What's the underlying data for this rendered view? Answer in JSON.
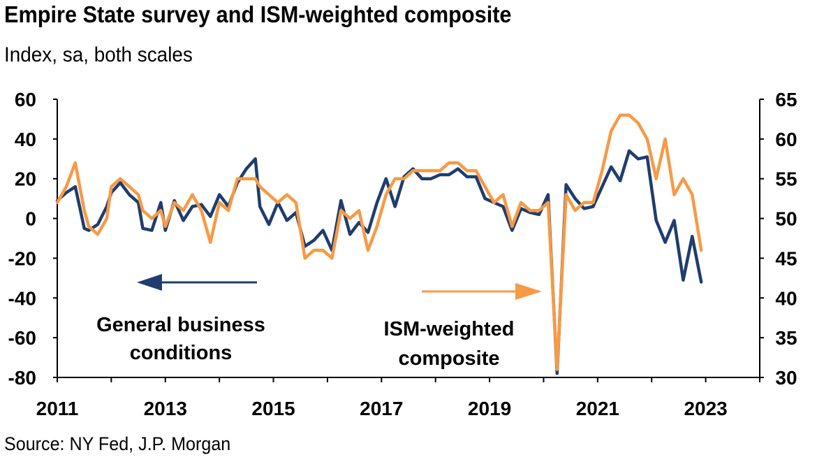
{
  "title": "Empire State survey and ISM-weighted composite",
  "subtitle": "Index, sa, both scales",
  "source": "Source: NY Fed, J.P. Morgan",
  "colors": {
    "navy": "#1f3d6e",
    "orange": "#f79a45"
  },
  "chart_data": {
    "type": "line",
    "x_range": [
      "2011-01",
      "2024-01"
    ],
    "x_ticks": [
      "2011",
      "2013",
      "2015",
      "2017",
      "2019",
      "2021",
      "2023"
    ],
    "y_left": {
      "ylim": [
        -80,
        60
      ],
      "ticks": [
        "60",
        "40",
        "20",
        "0",
        "-20",
        "-40",
        "-60",
        "-80"
      ]
    },
    "y_right": {
      "ylim": [
        30,
        65
      ],
      "ticks": [
        "65",
        "60",
        "55",
        "50",
        "45",
        "40",
        "35",
        "30"
      ]
    },
    "grid": false,
    "annotations": [
      {
        "text": [
          "General business",
          "conditions"
        ],
        "arrow": "left",
        "axis": "left"
      },
      {
        "text": [
          "ISM-weighted",
          "composite"
        ],
        "arrow": "right",
        "axis": "right"
      }
    ],
    "series": [
      {
        "name": "General business conditions",
        "axis": "left",
        "color": "#1f3d6e",
        "x": [
          "2011-01",
          "2011-03",
          "2011-05",
          "2011-07",
          "2011-08",
          "2011-10",
          "2011-12",
          "2012-01",
          "2012-03",
          "2012-05",
          "2012-07",
          "2012-08",
          "2012-10",
          "2012-12",
          "2013-01",
          "2013-03",
          "2013-05",
          "2013-07",
          "2013-09",
          "2013-11",
          "2014-01",
          "2014-03",
          "2014-05",
          "2014-07",
          "2014-09",
          "2014-10",
          "2014-12",
          "2015-02",
          "2015-04",
          "2015-06",
          "2015-08",
          "2015-10",
          "2015-12",
          "2016-02",
          "2016-04",
          "2016-06",
          "2016-08",
          "2016-10",
          "2016-12",
          "2017-02",
          "2017-04",
          "2017-06",
          "2017-08",
          "2017-10",
          "2017-12",
          "2018-02",
          "2018-04",
          "2018-06",
          "2018-08",
          "2018-10",
          "2018-12",
          "2019-02",
          "2019-04",
          "2019-06",
          "2019-08",
          "2019-10",
          "2019-12",
          "2020-02",
          "2020-04",
          "2020-06",
          "2020-08",
          "2020-10",
          "2020-12",
          "2021-02",
          "2021-04",
          "2021-06",
          "2021-08",
          "2021-10",
          "2021-12",
          "2022-02",
          "2022-04",
          "2022-06",
          "2022-08",
          "2022-10",
          "2022-12"
        ],
        "values": [
          9,
          13,
          16,
          -5,
          -6,
          -3,
          6,
          13,
          18,
          12,
          8,
          -5,
          -6,
          8,
          -6,
          9,
          -1,
          6,
          7,
          1,
          12,
          6,
          18,
          25,
          30,
          6,
          -3,
          8,
          -1,
          3,
          -14,
          -11,
          -6,
          -16,
          9,
          -8,
          -2,
          -7,
          8,
          20,
          6,
          21,
          25,
          20,
          20,
          22,
          22,
          25,
          21,
          21,
          10,
          8,
          6,
          -6,
          5,
          3,
          2,
          12,
          -78,
          17,
          10,
          5,
          6,
          16,
          26,
          19,
          34,
          30,
          31,
          -1,
          -12,
          -1,
          -31,
          -9,
          -32
        ]
      },
      {
        "name": "ISM-weighted composite",
        "axis": "right",
        "color": "#f79a45",
        "x": [
          "2011-01",
          "2011-03",
          "2011-05",
          "2011-07",
          "2011-08",
          "2011-10",
          "2011-12",
          "2012-01",
          "2012-03",
          "2012-05",
          "2012-07",
          "2012-08",
          "2012-10",
          "2012-12",
          "2013-01",
          "2013-03",
          "2013-05",
          "2013-07",
          "2013-09",
          "2013-11",
          "2014-01",
          "2014-03",
          "2014-05",
          "2014-07",
          "2014-09",
          "2014-10",
          "2014-12",
          "2015-02",
          "2015-04",
          "2015-06",
          "2015-08",
          "2015-10",
          "2015-12",
          "2016-02",
          "2016-04",
          "2016-06",
          "2016-08",
          "2016-10",
          "2016-12",
          "2017-02",
          "2017-04",
          "2017-06",
          "2017-08",
          "2017-10",
          "2017-12",
          "2018-02",
          "2018-04",
          "2018-06",
          "2018-08",
          "2018-10",
          "2018-12",
          "2019-02",
          "2019-04",
          "2019-06",
          "2019-08",
          "2019-10",
          "2019-12",
          "2020-02",
          "2020-04",
          "2020-06",
          "2020-08",
          "2020-10",
          "2020-12",
          "2021-02",
          "2021-04",
          "2021-06",
          "2021-08",
          "2021-10",
          "2021-12",
          "2022-02",
          "2022-04",
          "2022-06",
          "2022-08",
          "2022-10",
          "2022-12"
        ],
        "values": [
          52,
          54,
          57,
          51,
          49,
          48,
          50,
          54,
          55,
          54,
          53,
          51,
          50,
          51,
          49,
          52,
          51,
          53,
          51,
          47,
          52,
          51,
          55,
          55,
          55,
          54,
          53,
          52,
          53,
          52,
          45,
          46,
          46,
          45,
          51,
          50,
          51,
          46,
          49,
          53,
          55,
          55,
          56,
          56,
          56,
          56,
          57,
          57,
          56,
          56,
          54,
          52,
          53,
          49,
          52,
          51,
          51,
          52,
          31,
          53,
          51,
          52,
          52,
          56,
          61,
          63,
          63,
          62,
          60,
          55,
          60,
          53,
          55,
          53,
          46
        ]
      }
    ]
  }
}
